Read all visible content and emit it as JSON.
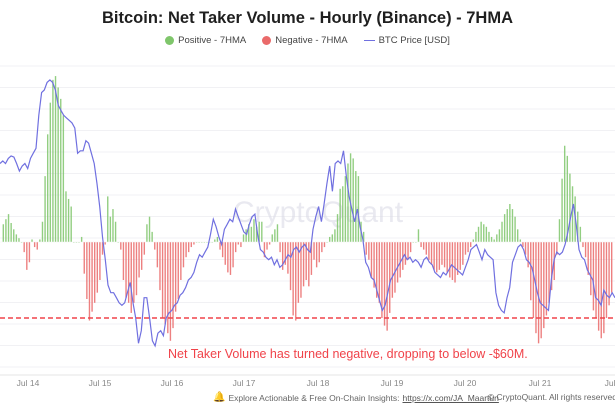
{
  "chart_data": {
    "type": "bar",
    "title": "Bitcoin: Net Taker Volume - Hourly (Binance) - 7HMA",
    "legend": [
      {
        "label": "Positive - 7HMA",
        "color": "#7fc66b",
        "kind": "dot"
      },
      {
        "label": "Negative - 7HMA",
        "color": "#ea6a6a",
        "kind": "dot"
      },
      {
        "label": "BTC Price [USD]",
        "color": "#7070e0",
        "kind": "line"
      }
    ],
    "legend_position": "top-center",
    "x_tick_labels": [
      "Jul 14",
      "Jul 15",
      "Jul 16",
      "Jul 17",
      "Jul 18",
      "Jul 19",
      "Jul 20",
      "Jul 21",
      "Jul"
    ],
    "xlabel": "",
    "ylabel": "",
    "y_unit": "USD millions (approx.)",
    "ylim": [
      -110,
      140
    ],
    "grid": true,
    "reference_line": {
      "value": -60,
      "style": "dashed",
      "color": "#f0434a"
    },
    "annotation": "Net Taker Volume has turned negative, dropping to below -$60M.",
    "watermark": "CryptoQuant",
    "series": [
      {
        "name": "Net Taker Volume 7HMA",
        "values": [
          14,
          18,
          22,
          15,
          10,
          6,
          3,
          0,
          -8,
          -22,
          -16,
          2,
          -4,
          -6,
          2,
          16,
          52,
          85,
          110,
          128,
          131,
          122,
          113,
          100,
          40,
          34,
          28,
          0,
          0,
          0,
          4,
          -25,
          -45,
          -62,
          -55,
          -48,
          -40,
          -30,
          -10,
          -2,
          36,
          20,
          26,
          16,
          0,
          -6,
          -30,
          -44,
          -48,
          -56,
          -48,
          -42,
          -28,
          -22,
          -10,
          14,
          20,
          8,
          -6,
          -20,
          -38,
          -60,
          -65,
          -72,
          -78,
          -68,
          -55,
          -45,
          -30,
          -20,
          -12,
          -8,
          -4,
          -2,
          0,
          0,
          0,
          0,
          0,
          0,
          0,
          2,
          4,
          -6,
          -12,
          -18,
          -24,
          -26,
          -20,
          -8,
          -2,
          -4,
          6,
          10,
          14,
          12,
          18,
          12,
          16,
          16,
          -12,
          -6,
          -2,
          6,
          10,
          14,
          -8,
          -22,
          -18,
          -25,
          -38,
          -58,
          -62,
          -48,
          -44,
          -35,
          -30,
          -35,
          -26,
          -14,
          -20,
          -16,
          -8,
          -4,
          0,
          4,
          6,
          10,
          22,
          42,
          44,
          52,
          62,
          70,
          66,
          56,
          52,
          16,
          8,
          -10,
          -14,
          -28,
          -36,
          -44,
          -48,
          -60,
          -66,
          -70,
          -56,
          -44,
          -40,
          -32,
          -28,
          -22,
          -18,
          -14,
          -8,
          0,
          0,
          10,
          -4,
          -6,
          -10,
          -14,
          -18,
          -22,
          -24,
          -22,
          -18,
          -20,
          -24,
          -28,
          -30,
          -32,
          -26,
          -22,
          -18,
          -10,
          -8,
          -4,
          2,
          8,
          12,
          16,
          14,
          12,
          8,
          4,
          2,
          6,
          10,
          16,
          22,
          26,
          30,
          26,
          20,
          10,
          2,
          -4,
          -10,
          -20,
          -46,
          -60,
          -72,
          -80,
          -76,
          -68,
          -58,
          -48,
          -38,
          -30,
          -10,
          18,
          50,
          76,
          68,
          54,
          44,
          36,
          24,
          12,
          -4,
          -12,
          -26,
          -42,
          -54,
          -60,
          -70,
          -76,
          -72,
          -60,
          -50,
          -40
        ]
      },
      {
        "name": "BTC Price [USD]",
        "values": [
          62,
          64,
          62,
          66,
          68,
          67,
          62,
          56,
          60,
          62,
          58,
          66,
          70,
          74,
          100,
          118,
          120,
          126,
          128,
          126,
          120,
          108,
          104,
          100,
          98,
          96,
          94,
          90,
          70,
          72,
          72,
          80,
          78,
          70,
          62,
          46,
          28,
          4,
          -14,
          -34,
          -40,
          -40,
          -44,
          -48,
          -50,
          -48,
          -40,
          -32,
          -48,
          -60,
          -80,
          -70,
          -44,
          -44,
          -60,
          -78,
          -82,
          -72,
          -70,
          -74,
          -60,
          -56,
          -54,
          -50,
          -48,
          -42,
          -40,
          -36,
          -30,
          -28,
          -24,
          -16,
          -10,
          -12,
          -8,
          -4,
          6,
          18,
          12,
          4,
          -2,
          10,
          14,
          18,
          16,
          26,
          20,
          14,
          8,
          6,
          14,
          20,
          22,
          6,
          -6,
          -8,
          -12,
          -14,
          -12,
          -18,
          -14,
          -20,
          -18,
          -14,
          -10,
          -12,
          -6,
          -4,
          -8,
          -4,
          -2,
          -6,
          -8,
          10,
          20,
          28,
          16,
          30,
          46,
          60,
          40,
          62,
          64,
          62,
          72,
          52,
          36,
          26,
          16,
          26,
          12,
          2,
          -16,
          -20,
          -28,
          -30,
          -38,
          -46,
          -54,
          -50,
          -40,
          -30,
          -26,
          -22,
          -18,
          -14,
          -10,
          -14,
          -12,
          -16,
          -14,
          -16,
          -20,
          -14,
          -12,
          -16,
          -18,
          -24,
          -26,
          -28,
          -24,
          -26,
          -22,
          -18,
          -20,
          -22,
          -24,
          -26,
          -20,
          -14,
          -6,
          -4,
          -2,
          -8,
          -14,
          -6,
          -10,
          -12,
          -14,
          -40,
          -50,
          -54,
          -56,
          -44,
          -36,
          -16,
          -10,
          -4,
          -2,
          -6,
          -14,
          -16,
          -20,
          -30,
          -40,
          -48,
          -50,
          -52,
          -54,
          -30,
          -14,
          -8,
          -10,
          -8,
          -2,
          8,
          20,
          30,
          14,
          -6,
          -12,
          -14,
          -22,
          -26,
          -30,
          -44,
          -46,
          -50,
          -38,
          -42,
          -44,
          -40,
          -44
        ]
      }
    ]
  },
  "footer": {
    "note": "Explore Actionable & Free On-Chain Insights:",
    "link": "https://x.com/JA_Maartun",
    "copyright": "© CryptoQuant. All rights reserved"
  }
}
